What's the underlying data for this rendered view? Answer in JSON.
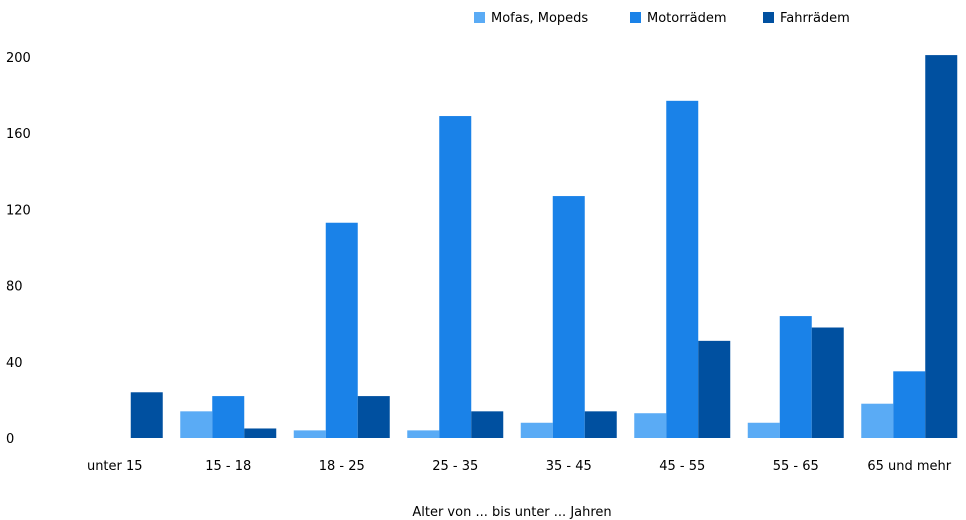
{
  "chart_data": {
    "type": "bar",
    "title": "",
    "xlabel": "Alter von ... bis unter ... Jahren",
    "ylabel": "",
    "ylim": [
      0,
      200
    ],
    "yticks": [
      0,
      40,
      80,
      120,
      160,
      200
    ],
    "grid": false,
    "legend_position": "top-right",
    "categories": [
      "unter 15",
      "15 - 18",
      "18 - 25",
      "25 - 35",
      "35 - 45",
      "45 - 55",
      "55 - 65",
      "65 und mehr"
    ],
    "series": [
      {
        "name": "Mofas, Mopeds",
        "color": "#5aabf5",
        "values": [
          0,
          14,
          4,
          4,
          8,
          13,
          8,
          18
        ]
      },
      {
        "name": "Motorrädem",
        "color": "#1a82e8",
        "values": [
          0,
          22,
          113,
          169,
          127,
          177,
          64,
          35
        ]
      },
      {
        "name": "Fahrrädem",
        "color": "#0050a0",
        "values": [
          24,
          5,
          22,
          14,
          14,
          51,
          58,
          201
        ]
      }
    ]
  }
}
